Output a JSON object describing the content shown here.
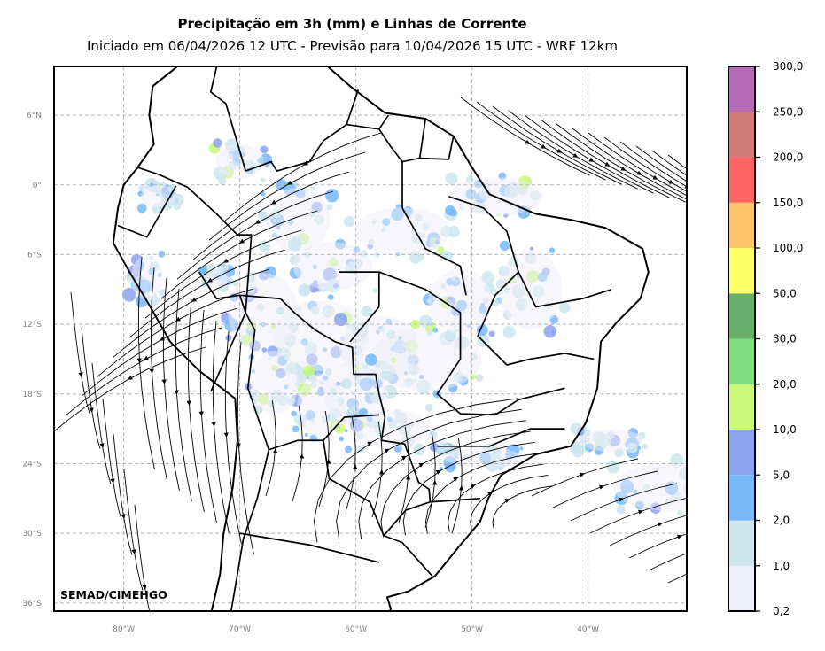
{
  "header": {
    "title": "Precipitação em 3h (mm) e Linhas de Corrente",
    "subtitle": "Iniciado em 06/04/2026 12 UTC - Previsão para 10/04/2026 15 UTC - WRF 12km"
  },
  "map": {
    "lon_range": [
      -86,
      -31.5
    ],
    "lat_range": [
      -36.7,
      10.2
    ],
    "lat_ticks": [
      {
        "value": 6,
        "label": "6°N"
      },
      {
        "value": 0,
        "label": "0°"
      },
      {
        "value": -6,
        "label": "6°S"
      },
      {
        "value": -12,
        "label": "12°S"
      },
      {
        "value": -18,
        "label": "18°S"
      },
      {
        "value": -24,
        "label": "24°S"
      },
      {
        "value": -30,
        "label": "30°S"
      },
      {
        "value": -36,
        "label": "36°S"
      }
    ],
    "lon_ticks": [
      {
        "value": -80,
        "label": "80°W"
      },
      {
        "value": -70,
        "label": "70°W"
      },
      {
        "value": -60,
        "label": "60°W"
      },
      {
        "value": -50,
        "label": "50°W"
      },
      {
        "value": -40,
        "label": "40°W"
      }
    ],
    "grid": true,
    "credit": "SEMAD/CIMEHGO",
    "colors": {
      "grid": "#b5b5b5",
      "border": "#000000",
      "streamline": "#000000"
    }
  },
  "colorbar": {
    "labels": [
      "0,2",
      "1,0",
      "2,0",
      "5,0",
      "10,0",
      "20,0",
      "30,0",
      "50,0",
      "100,0",
      "150,0",
      "200,0",
      "250,0",
      "300,0"
    ],
    "colors": [
      "#eeeefa",
      "#cde6ef",
      "#78b8fb",
      "#8ca3f0",
      "#c8fa78",
      "#80e07f",
      "#66b06a",
      "#ffff66",
      "#ffc466",
      "#ff6464",
      "#d27b78",
      "#b46ab8"
    ]
  }
}
